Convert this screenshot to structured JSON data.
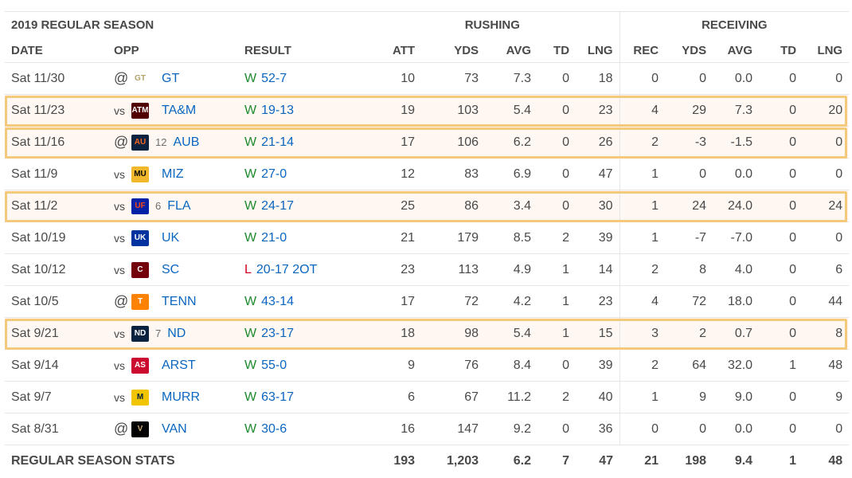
{
  "header": {
    "season": "2019 REGULAR SEASON",
    "rushing": "RUSHING",
    "receiving": "RECEIVING"
  },
  "columns": [
    "DATE",
    "OPP",
    "RESULT",
    "ATT",
    "YDS",
    "AVG",
    "TD",
    "LNG",
    "REC",
    "YDS",
    "AVG",
    "TD",
    "LNG"
  ],
  "games": [
    {
      "date": "Sat 11/30",
      "pre": "@",
      "logo_icon": "georgia-tech-logo",
      "logo_text": "GT",
      "logo_bg": "#ffffff",
      "logo_fg": "#b3a369",
      "rank": "",
      "team": "GT",
      "wl": "W",
      "score": "52-7",
      "att": "10",
      "ryds": "73",
      "ravg": "7.3",
      "rtd": "0",
      "rlng": "18",
      "rec": "0",
      "yds": "0",
      "avg": "0.0",
      "td": "0",
      "lng": "0",
      "hl": false
    },
    {
      "date": "Sat 11/23",
      "pre": "vs",
      "logo_icon": "texas-am-logo",
      "logo_text": "ATM",
      "logo_bg": "#500000",
      "logo_fg": "#ffffff",
      "rank": "",
      "team": "TA&M",
      "wl": "W",
      "score": "19-13",
      "att": "19",
      "ryds": "103",
      "ravg": "5.4",
      "rtd": "0",
      "rlng": "23",
      "rec": "4",
      "yds": "29",
      "avg": "7.3",
      "td": "0",
      "lng": "20",
      "hl": true
    },
    {
      "date": "Sat 11/16",
      "pre": "@",
      "logo_icon": "auburn-logo",
      "logo_text": "AU",
      "logo_bg": "#0c2340",
      "logo_fg": "#f26522",
      "rank": "12",
      "team": "AUB",
      "wl": "W",
      "score": "21-14",
      "att": "17",
      "ryds": "106",
      "ravg": "6.2",
      "rtd": "0",
      "rlng": "26",
      "rec": "2",
      "yds": "-3",
      "avg": "-1.5",
      "td": "0",
      "lng": "0",
      "hl": true
    },
    {
      "date": "Sat 11/9",
      "pre": "vs",
      "logo_icon": "missouri-logo",
      "logo_text": "MU",
      "logo_bg": "#f1b82d",
      "logo_fg": "#000000",
      "rank": "",
      "team": "MIZ",
      "wl": "W",
      "score": "27-0",
      "att": "12",
      "ryds": "83",
      "ravg": "6.9",
      "rtd": "0",
      "rlng": "47",
      "rec": "1",
      "yds": "0",
      "avg": "0.0",
      "td": "0",
      "lng": "0",
      "hl": false
    },
    {
      "date": "Sat 11/2",
      "pre": "vs",
      "logo_icon": "florida-logo",
      "logo_text": "UF",
      "logo_bg": "#0021a5",
      "logo_fg": "#fa4616",
      "rank": "6",
      "team": "FLA",
      "wl": "W",
      "score": "24-17",
      "att": "25",
      "ryds": "86",
      "ravg": "3.4",
      "rtd": "0",
      "rlng": "30",
      "rec": "1",
      "yds": "24",
      "avg": "24.0",
      "td": "0",
      "lng": "24",
      "hl": true
    },
    {
      "date": "Sat 10/19",
      "pre": "vs",
      "logo_icon": "kentucky-logo",
      "logo_text": "UK",
      "logo_bg": "#0033a0",
      "logo_fg": "#ffffff",
      "rank": "",
      "team": "UK",
      "wl": "W",
      "score": "21-0",
      "att": "21",
      "ryds": "179",
      "ravg": "8.5",
      "rtd": "2",
      "rlng": "39",
      "rec": "1",
      "yds": "-7",
      "avg": "-7.0",
      "td": "0",
      "lng": "0",
      "hl": false
    },
    {
      "date": "Sat 10/12",
      "pre": "vs",
      "logo_icon": "south-carolina-logo",
      "logo_text": "C",
      "logo_bg": "#73000a",
      "logo_fg": "#ffffff",
      "rank": "",
      "team": "SC",
      "wl": "L",
      "score": "20-17 2OT",
      "att": "23",
      "ryds": "113",
      "ravg": "4.9",
      "rtd": "1",
      "rlng": "14",
      "rec": "2",
      "yds": "8",
      "avg": "4.0",
      "td": "0",
      "lng": "6",
      "hl": false
    },
    {
      "date": "Sat 10/5",
      "pre": "@",
      "logo_icon": "tennessee-logo",
      "logo_text": "T",
      "logo_bg": "#ff8200",
      "logo_fg": "#ffffff",
      "rank": "",
      "team": "TENN",
      "wl": "W",
      "score": "43-14",
      "att": "17",
      "ryds": "72",
      "ravg": "4.2",
      "rtd": "1",
      "rlng": "23",
      "rec": "4",
      "yds": "72",
      "avg": "18.0",
      "td": "0",
      "lng": "44",
      "hl": false
    },
    {
      "date": "Sat 9/21",
      "pre": "vs",
      "logo_icon": "notre-dame-logo",
      "logo_text": "ND",
      "logo_bg": "#0c2340",
      "logo_fg": "#ffffff",
      "rank": "7",
      "team": "ND",
      "wl": "W",
      "score": "23-17",
      "att": "18",
      "ryds": "98",
      "ravg": "5.4",
      "rtd": "1",
      "rlng": "15",
      "rec": "3",
      "yds": "2",
      "avg": "0.7",
      "td": "0",
      "lng": "8",
      "hl": true
    },
    {
      "date": "Sat 9/14",
      "pre": "vs",
      "logo_icon": "arkansas-state-logo",
      "logo_text": "AS",
      "logo_bg": "#cc092f",
      "logo_fg": "#ffffff",
      "rank": "",
      "team": "ARST",
      "wl": "W",
      "score": "55-0",
      "att": "9",
      "ryds": "76",
      "ravg": "8.4",
      "rtd": "0",
      "rlng": "39",
      "rec": "2",
      "yds": "64",
      "avg": "32.0",
      "td": "1",
      "lng": "48",
      "hl": false
    },
    {
      "date": "Sat 9/7",
      "pre": "vs",
      "logo_icon": "murray-state-logo",
      "logo_text": "M",
      "logo_bg": "#f1c400",
      "logo_fg": "#002144",
      "rank": "",
      "team": "MURR",
      "wl": "W",
      "score": "63-17",
      "att": "6",
      "ryds": "67",
      "ravg": "11.2",
      "rtd": "2",
      "rlng": "40",
      "rec": "1",
      "yds": "9",
      "avg": "9.0",
      "td": "0",
      "lng": "9",
      "hl": false
    },
    {
      "date": "Sat 8/31",
      "pre": "@",
      "logo_icon": "vanderbilt-logo",
      "logo_text": "V",
      "logo_bg": "#000000",
      "logo_fg": "#cfae70",
      "rank": "",
      "team": "VAN",
      "wl": "W",
      "score": "30-6",
      "att": "16",
      "ryds": "147",
      "ravg": "9.2",
      "rtd": "0",
      "rlng": "36",
      "rec": "0",
      "yds": "0",
      "avg": "0.0",
      "td": "0",
      "lng": "0",
      "hl": false
    }
  ],
  "totals": {
    "label": "REGULAR SEASON STATS",
    "att": "193",
    "ryds": "1,203",
    "ravg": "6.2",
    "rtd": "7",
    "rlng": "47",
    "rec": "21",
    "yds": "198",
    "avg": "9.4",
    "td": "1",
    "lng": "48"
  },
  "colors": {
    "win": "#1e8a2e",
    "loss": "#d0021b",
    "link": "#0b66c0",
    "highlight_border": "#f5c97b",
    "highlight_bg": "#fff8f2"
  }
}
